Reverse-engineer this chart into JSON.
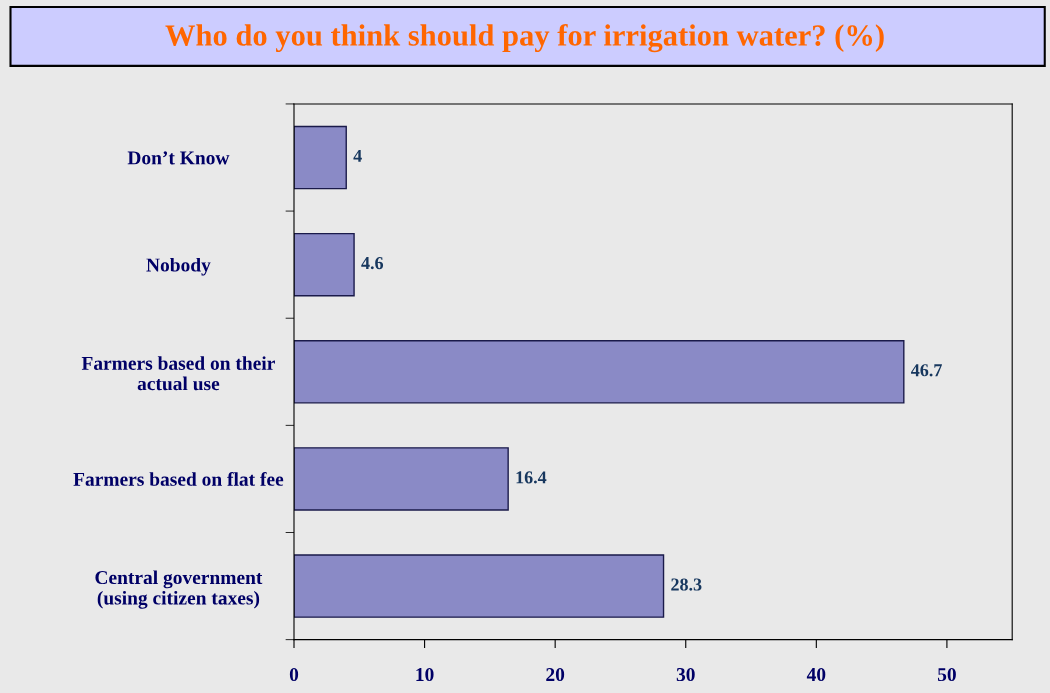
{
  "chart_data": {
    "type": "bar",
    "orientation": "horizontal",
    "title": "Who do you think should pay for irrigation water? (%)",
    "categories": [
      "Don’t Know",
      "Nobody",
      "Farmers based on their\nactual use",
      "Farmers based on flat fee",
      "Central government\n(using citizen taxes)"
    ],
    "values": [
      4,
      4.6,
      46.7,
      16.4,
      28.3
    ],
    "color": "#8a8ac6",
    "xlim": [
      0,
      55
    ],
    "xticks": [
      0,
      10,
      20,
      30,
      40,
      50
    ],
    "data_labels": true,
    "grid": false,
    "legend": false
  }
}
